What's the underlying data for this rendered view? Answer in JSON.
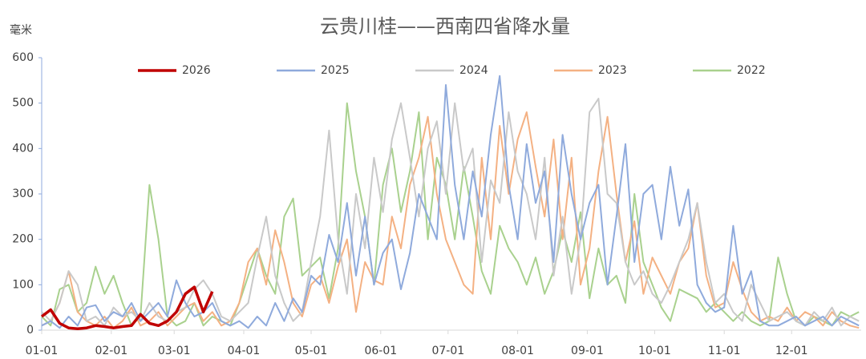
{
  "chart_data": {
    "type": "line",
    "title": "云贵川桂——西南四省降水量",
    "y_unit": "毫米",
    "x": [
      0,
      4,
      8,
      12,
      16,
      20,
      24,
      28,
      32,
      36,
      40,
      44,
      48,
      52,
      56,
      60,
      64,
      68,
      72,
      76,
      80,
      84,
      88,
      92,
      96,
      100,
      104,
      108,
      112,
      116,
      120,
      124,
      128,
      132,
      136,
      140,
      144,
      148,
      152,
      156,
      160,
      164,
      168,
      172,
      176,
      180,
      184,
      188,
      192,
      196,
      200,
      204,
      208,
      212,
      216,
      220,
      224,
      228,
      232,
      236,
      240,
      244,
      248,
      252,
      256,
      260,
      264,
      268,
      272,
      276,
      280,
      284,
      288,
      292,
      296,
      300,
      304,
      308,
      312,
      316,
      320,
      324,
      328,
      332,
      336,
      340,
      344,
      348,
      352,
      356,
      360,
      364
    ],
    "xlim": [
      0,
      365
    ],
    "xticks": [
      {
        "value": 0,
        "label": "01-01"
      },
      {
        "value": 31,
        "label": "02-01"
      },
      {
        "value": 59,
        "label": "03-01"
      },
      {
        "value": 90,
        "label": "04-01"
      },
      {
        "value": 120,
        "label": "05-01"
      },
      {
        "value": 151,
        "label": "06-01"
      },
      {
        "value": 181,
        "label": "07-01"
      },
      {
        "value": 212,
        "label": "08-01"
      },
      {
        "value": 243,
        "label": "09-01"
      },
      {
        "value": 273,
        "label": "10-01"
      },
      {
        "value": 304,
        "label": "11-01"
      },
      {
        "value": 334,
        "label": "12-01"
      }
    ],
    "ylim": [
      0,
      600
    ],
    "yticks": [
      0,
      100,
      200,
      300,
      400,
      500,
      600
    ],
    "series": [
      {
        "name": "2026",
        "color": "#c00000",
        "values": [
          30,
          45,
          15,
          5,
          3,
          5,
          10,
          8,
          5,
          8,
          10,
          35,
          15,
          10,
          20,
          40,
          80,
          95,
          40,
          85,
          null,
          null,
          null,
          null,
          null,
          null,
          null,
          null,
          null,
          null,
          null,
          null,
          null,
          null,
          null,
          null,
          null,
          null,
          null,
          null,
          null,
          null,
          null,
          null,
          null,
          null,
          null,
          null,
          null,
          null,
          null,
          null,
          null,
          null,
          null,
          null,
          null,
          null,
          null,
          null,
          null,
          null,
          null,
          null,
          null,
          null,
          null,
          null,
          null,
          null,
          null,
          null,
          null,
          null,
          null,
          null,
          null,
          null,
          null,
          null,
          null,
          null,
          null,
          null,
          null,
          null,
          null,
          null,
          null,
          null,
          null,
          null
        ]
      },
      {
        "name": "2025",
        "color": "#8faadc",
        "values": [
          10,
          20,
          5,
          30,
          10,
          50,
          55,
          20,
          40,
          30,
          60,
          20,
          40,
          60,
          30,
          110,
          60,
          30,
          40,
          60,
          20,
          10,
          20,
          5,
          30,
          10,
          60,
          20,
          70,
          40,
          120,
          100,
          210,
          150,
          280,
          120,
          250,
          100,
          170,
          200,
          90,
          170,
          300,
          250,
          200,
          540,
          320,
          200,
          350,
          250,
          430,
          560,
          320,
          200,
          410,
          280,
          350,
          150,
          430,
          300,
          200,
          280,
          320,
          100,
          250,
          410,
          150,
          300,
          320,
          200,
          360,
          230,
          310,
          100,
          60,
          40,
          50,
          230,
          80,
          130,
          20,
          10,
          10,
          20,
          30,
          10,
          20,
          30,
          10,
          30,
          20,
          10
        ]
      },
      {
        "name": "2024",
        "color": "#c9c9c9",
        "values": [
          40,
          20,
          60,
          130,
          100,
          20,
          30,
          10,
          50,
          30,
          40,
          20,
          60,
          30,
          20,
          40,
          50,
          90,
          110,
          80,
          30,
          20,
          40,
          60,
          160,
          250,
          120,
          60,
          20,
          40,
          150,
          250,
          440,
          200,
          80,
          300,
          180,
          380,
          260,
          420,
          500,
          380,
          250,
          400,
          460,
          300,
          500,
          350,
          400,
          150,
          330,
          280,
          480,
          350,
          300,
          200,
          380,
          120,
          250,
          80,
          200,
          480,
          510,
          300,
          280,
          150,
          100,
          130,
          80,
          60,
          100,
          150,
          200,
          280,
          150,
          60,
          80,
          40,
          20,
          100,
          60,
          20,
          30,
          40,
          20,
          10,
          40,
          20,
          50,
          10,
          30,
          20
        ]
      },
      {
        "name": "2023",
        "color": "#f4b183",
        "values": [
          10,
          20,
          60,
          130,
          40,
          20,
          10,
          30,
          5,
          20,
          50,
          10,
          20,
          40,
          10,
          30,
          50,
          60,
          20,
          40,
          10,
          20,
          60,
          150,
          180,
          100,
          220,
          150,
          60,
          30,
          100,
          120,
          60,
          140,
          200,
          40,
          150,
          110,
          100,
          250,
          180,
          320,
          380,
          470,
          300,
          200,
          150,
          100,
          80,
          380,
          200,
          450,
          300,
          420,
          480,
          360,
          250,
          420,
          200,
          380,
          100,
          180,
          350,
          470,
          300,
          150,
          240,
          80,
          160,
          120,
          80,
          150,
          180,
          280,
          120,
          50,
          60,
          150,
          90,
          40,
          20,
          30,
          20,
          50,
          20,
          40,
          30,
          10,
          40,
          20,
          10,
          5
        ]
      },
      {
        "name": "2022",
        "color": "#a9d18e",
        "values": [
          30,
          10,
          90,
          100,
          40,
          60,
          140,
          80,
          120,
          60,
          10,
          30,
          320,
          200,
          30,
          10,
          20,
          60,
          10,
          30,
          20,
          10,
          60,
          120,
          180,
          120,
          80,
          250,
          290,
          120,
          140,
          160,
          70,
          180,
          500,
          350,
          250,
          100,
          320,
          400,
          260,
          350,
          480,
          200,
          380,
          320,
          200,
          360,
          250,
          130,
          80,
          230,
          180,
          150,
          100,
          160,
          80,
          130,
          220,
          150,
          260,
          70,
          180,
          100,
          120,
          60,
          300,
          150,
          100,
          50,
          20,
          90,
          80,
          70,
          40,
          60,
          40,
          20,
          40,
          20,
          10,
          20,
          160,
          80,
          20,
          10,
          30,
          20,
          10,
          40,
          30,
          40
        ]
      }
    ]
  }
}
